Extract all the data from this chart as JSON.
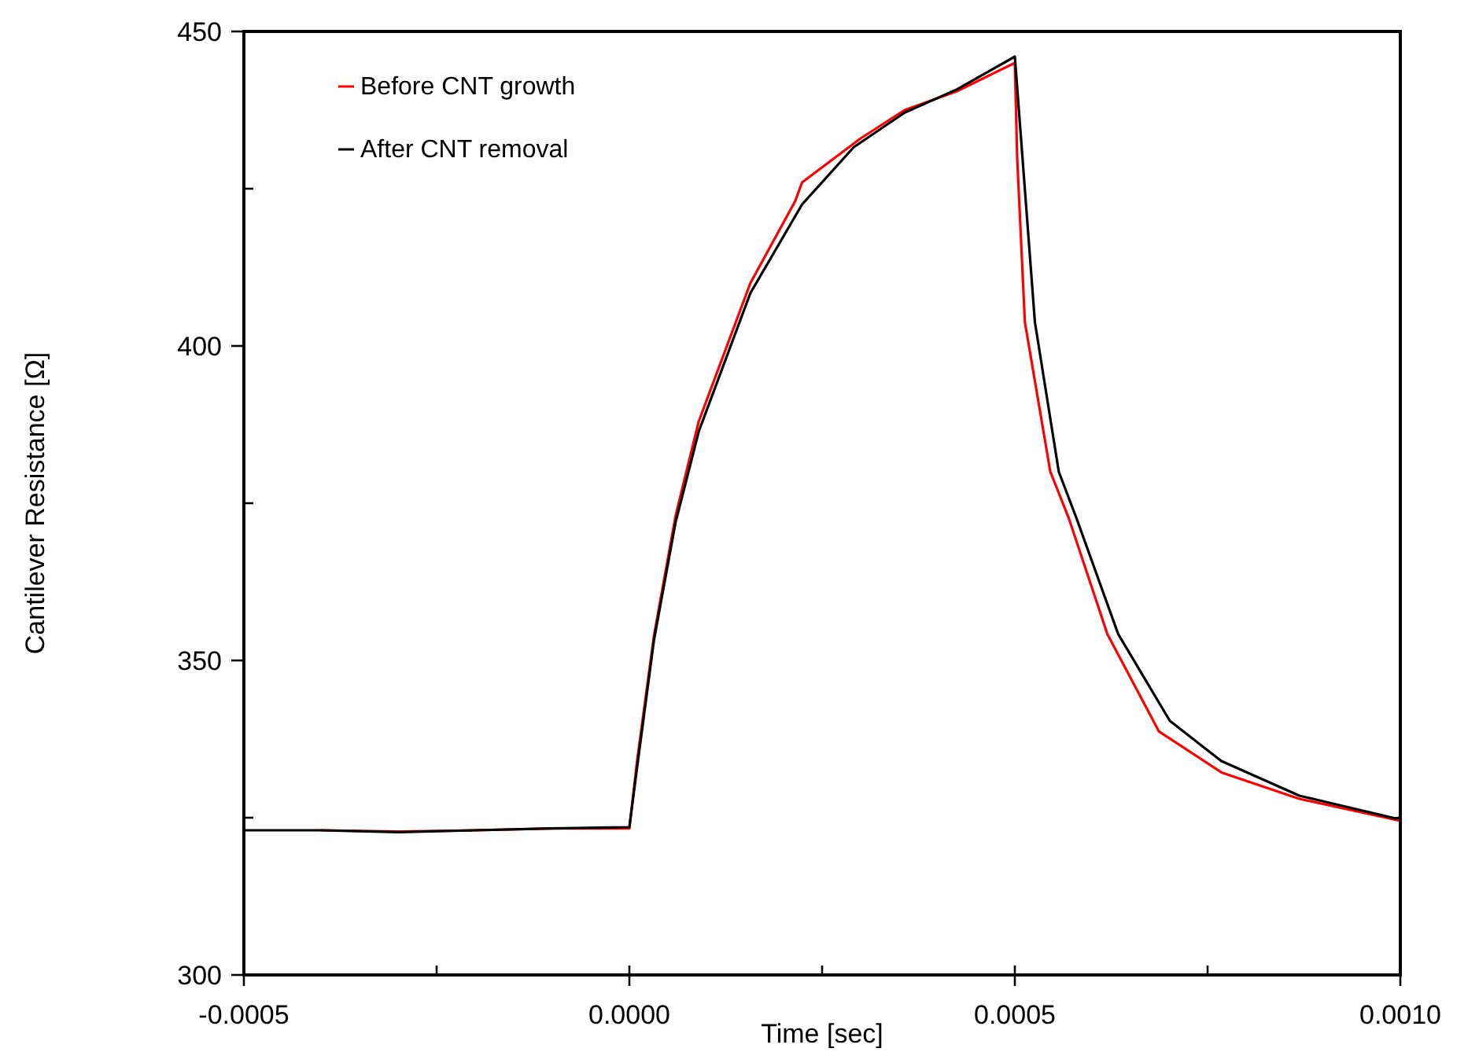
{
  "chart_data": {
    "type": "line",
    "xlabel": "Time [sec]",
    "ylabel": "Cantilever Resistance [Ω]",
    "xlim": [
      -0.0005,
      0.001
    ],
    "ylim": [
      300,
      450
    ],
    "xticks": [
      {
        "value": -0.0005,
        "label": "-0.0005"
      },
      {
        "value": -0.00025,
        "label": null
      },
      {
        "value": 0,
        "label": "0.0000"
      },
      {
        "value": 0.00025,
        "label": null
      },
      {
        "value": 0.0005,
        "label": "0.0005"
      },
      {
        "value": 0.00075,
        "label": null
      },
      {
        "value": 0.001,
        "label": "0.0010"
      }
    ],
    "yticks": [
      300,
      {
        "value": 325,
        "label": null
      },
      350,
      {
        "value": 375,
        "label": null
      },
      400,
      {
        "value": 425,
        "label": null
      },
      450
    ],
    "grid": false,
    "legend": "top left",
    "marker": "none",
    "line_style": "solid",
    "series": [
      {
        "name": "Before CNT growth",
        "color": "#ff0000",
        "x": [
          -0.0004,
          -0.0003,
          -0.0002,
          -0.0001,
          0,
          1e-05,
          3.2e-05,
          6e-05,
          9e-05,
          0.000157,
          0.000215,
          0.000224,
          0.0003,
          0.000357,
          0.000425,
          0.0005,
          0.000503,
          0.000513,
          0.000546,
          0.00057,
          0.00062,
          0.000687,
          0.000768,
          0.000869,
          0.001
        ],
        "values": [
          323,
          322.8,
          323,
          323.3,
          323.3,
          334,
          354,
          373,
          388,
          410,
          423,
          426,
          433,
          437.5,
          440.5,
          445,
          430,
          403.8,
          380,
          372.6,
          354.2,
          338.7,
          332.2,
          328,
          324.5
        ]
      },
      {
        "name": "After CNT removal",
        "color": "#000000",
        "x": [
          -0.0005,
          -0.0004,
          -0.0003,
          -0.0002,
          -0.0001,
          0,
          1e-05,
          3.2e-05,
          6e-05,
          9e-05,
          0.000157,
          0.000224,
          0.000291,
          0.000357,
          0.000425,
          0.0005,
          0.000526,
          0.000557,
          0.00058,
          0.000634,
          0.000701,
          0.000768,
          0.000869,
          0.000993,
          0.001
        ],
        "values": [
          323,
          323,
          322.7,
          323,
          323.3,
          323.5,
          333,
          353.3,
          372,
          386.4,
          408.4,
          422.5,
          431.6,
          437.1,
          440.8,
          446,
          403.8,
          380,
          372.6,
          354.2,
          340.4,
          334,
          328.5,
          324.9,
          325
        ]
      }
    ]
  }
}
